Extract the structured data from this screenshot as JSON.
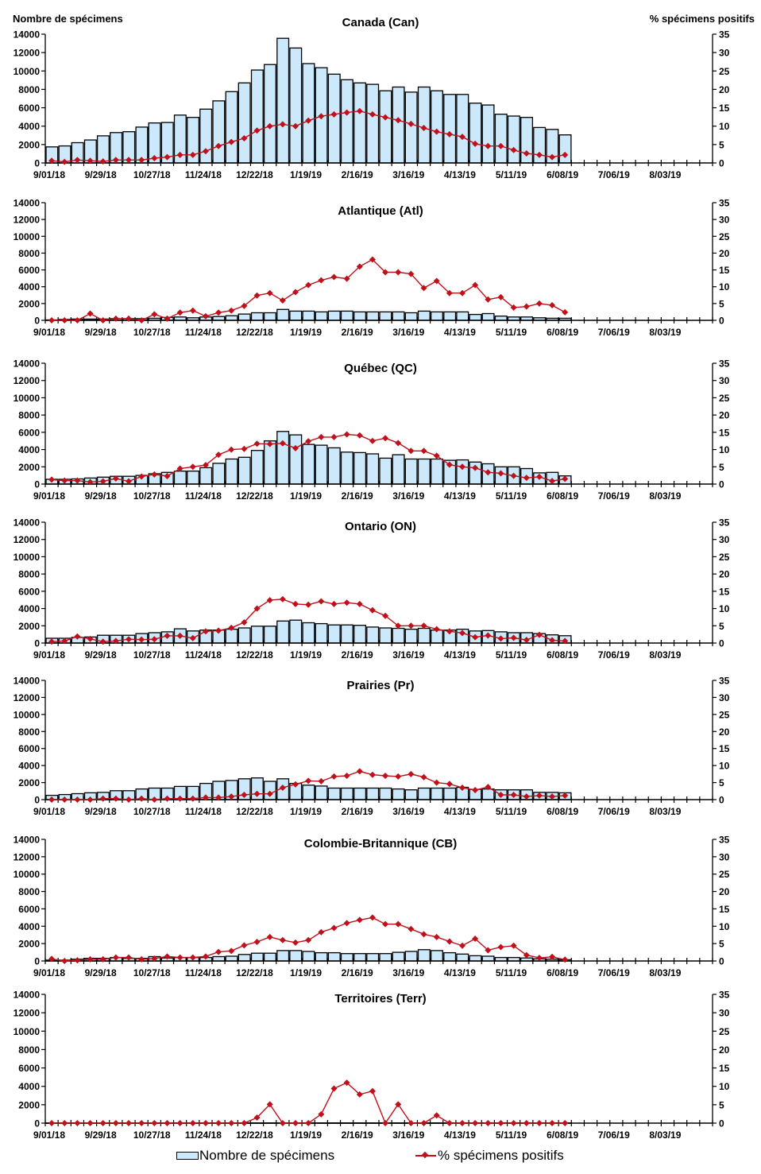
{
  "chart_data": [
    {
      "type": "bar+line",
      "title": "Canada (Can)",
      "ylabel_left": "Nombre de spécimens",
      "ylabel_right": "% spécimens positifs",
      "y_left_ticks": [
        "0",
        "2000",
        "4000",
        "6000",
        "8000",
        "10000",
        "12000",
        "14000"
      ],
      "y_right_ticks": [
        "0",
        "5",
        "10",
        "15",
        "20",
        "25",
        "30",
        "35"
      ],
      "ylim_left": [
        0,
        14000
      ],
      "ylim_right": [
        0,
        35
      ],
      "x_tick_labels": [
        "9/01/18",
        "9/29/18",
        "10/27/18",
        "11/24/18",
        "12/22/18",
        "1/19/19",
        "2/16/19",
        "3/16/19",
        "4/13/19",
        "5/11/19",
        "6/08/19",
        "7/06/19",
        "8/03/19"
      ],
      "weeks_total": 52,
      "series": [
        {
          "name": "Nombre de spécimens",
          "kind": "bar",
          "values": [
            1750,
            1850,
            2200,
            2500,
            2950,
            3300,
            3400,
            3900,
            4350,
            4400,
            5200,
            4950,
            5850,
            6750,
            7750,
            8700,
            10100,
            10700,
            13550,
            12500,
            10800,
            10350,
            9650,
            9050,
            8700,
            8550,
            7850,
            8250,
            7700,
            8250,
            7850,
            7450,
            7450,
            6500,
            6300,
            5300,
            5100,
            4950,
            3850,
            3650,
            3050
          ]
        },
        {
          "name": "% spécimens positifs",
          "kind": "line",
          "values": [
            0.6,
            0.3,
            0.8,
            0.6,
            0.4,
            0.8,
            0.8,
            0.8,
            1.3,
            1.6,
            2.2,
            2.2,
            3.2,
            4.6,
            5.7,
            6.7,
            8.8,
            10.0,
            10.5,
            10.0,
            11.5,
            12.7,
            13.2,
            13.7,
            14.1,
            13.2,
            12.4,
            11.6,
            10.6,
            9.5,
            8.5,
            7.8,
            7.1,
            5.2,
            4.6,
            4.6,
            3.5,
            2.6,
            2.2,
            1.6,
            2.2
          ]
        }
      ]
    },
    {
      "type": "bar+line",
      "title": "Atlantique (Atl)",
      "y_left_ticks": [
        "0",
        "2000",
        "4000",
        "6000",
        "8000",
        "10000",
        "12000",
        "14000"
      ],
      "y_right_ticks": [
        "0",
        "5",
        "10",
        "15",
        "20",
        "25",
        "30",
        "35"
      ],
      "ylim_left": [
        0,
        14000
      ],
      "ylim_right": [
        0,
        35
      ],
      "x_tick_labels": [
        "9/01/18",
        "9/29/18",
        "10/27/18",
        "11/24/18",
        "12/22/18",
        "1/19/19",
        "2/16/19",
        "3/16/19",
        "4/13/19",
        "5/11/19",
        "6/08/19",
        "7/06/19",
        "8/03/19"
      ],
      "weeks_total": 52,
      "series": [
        {
          "name": "Nombre de spécimens",
          "kind": "bar",
          "values": [
            50,
            100,
            150,
            150,
            150,
            200,
            200,
            200,
            250,
            350,
            400,
            300,
            400,
            450,
            550,
            750,
            900,
            900,
            1300,
            1100,
            1100,
            1000,
            1100,
            1100,
            1000,
            1000,
            1000,
            1000,
            900,
            1100,
            1000,
            1000,
            1000,
            700,
            800,
            500,
            400,
            400,
            300,
            250,
            250
          ]
        },
        {
          "name": "% spécimens positifs",
          "kind": "line",
          "values": [
            0,
            0,
            0,
            2.0,
            0,
            0.5,
            0.5,
            0,
            1.8,
            0.5,
            2.3,
            2.9,
            1.2,
            2.3,
            2.9,
            4.3,
            7.4,
            8.1,
            5.9,
            8.4,
            10.5,
            11.9,
            12.9,
            12.4,
            16.0,
            18.1,
            14.3,
            14.3,
            13.8,
            9.6,
            11.7,
            8.1,
            8.1,
            10.5,
            6.2,
            6.9,
            3.8,
            4.1,
            5.0,
            4.5,
            2.4
          ]
        }
      ]
    },
    {
      "type": "bar+line",
      "title": "Québec (QC)",
      "y_left_ticks": [
        "0",
        "2000",
        "4000",
        "6000",
        "8000",
        "10000",
        "12000",
        "14000"
      ],
      "y_right_ticks": [
        "0",
        "5",
        "10",
        "15",
        "20",
        "25",
        "30",
        "35"
      ],
      "ylim_left": [
        0,
        14000
      ],
      "ylim_right": [
        0,
        35
      ],
      "x_tick_labels": [
        "9/01/18",
        "9/29/18",
        "10/27/18",
        "11/24/18",
        "12/22/18",
        "1/19/19",
        "2/16/19",
        "3/16/19",
        "4/13/19",
        "5/11/19",
        "6/08/19",
        "7/06/19",
        "8/03/19"
      ],
      "weeks_total": 52,
      "series": [
        {
          "name": "Nombre de spécimens",
          "kind": "bar",
          "values": [
            550,
            550,
            600,
            700,
            800,
            900,
            900,
            1000,
            1200,
            1350,
            1500,
            1500,
            1900,
            2400,
            2900,
            3100,
            3900,
            5000,
            6100,
            5700,
            4600,
            4500,
            4200,
            3700,
            3650,
            3500,
            3000,
            3400,
            2900,
            2900,
            2900,
            2750,
            2800,
            2550,
            2350,
            2000,
            2000,
            1800,
            1300,
            1350,
            950
          ]
        },
        {
          "name": "% spécimens positifs",
          "kind": "line",
          "values": [
            1.3,
            1.0,
            1.0,
            0.6,
            0.8,
            1.6,
            0.8,
            2.2,
            2.8,
            2.3,
            4.5,
            5.0,
            5.5,
            8.5,
            10.0,
            10.2,
            11.7,
            11.6,
            11.8,
            10.4,
            12.4,
            13.6,
            13.6,
            14.4,
            14.1,
            12.5,
            13.3,
            11.9,
            9.6,
            9.6,
            8.2,
            5.6,
            5.0,
            4.7,
            3.4,
            3.1,
            2.4,
            1.8,
            2.1,
            0.9,
            1.5
          ]
        }
      ]
    },
    {
      "type": "bar+line",
      "title": "Ontario (ON)",
      "y_left_ticks": [
        "0",
        "2000",
        "4000",
        "6000",
        "8000",
        "10000",
        "12000",
        "14000"
      ],
      "y_right_ticks": [
        "0",
        "5",
        "10",
        "15",
        "20",
        "25",
        "30",
        "35"
      ],
      "ylim_left": [
        0,
        14000
      ],
      "ylim_right": [
        0,
        35
      ],
      "x_tick_labels": [
        "9/01/18",
        "9/29/18",
        "10/27/18",
        "11/24/18",
        "12/22/18",
        "1/19/19",
        "2/16/19",
        "3/16/19",
        "4/13/19",
        "5/11/19",
        "6/08/19",
        "7/06/19",
        "8/03/19"
      ],
      "weeks_total": 52,
      "series": [
        {
          "name": "Nombre de spécimens",
          "kind": "bar",
          "values": [
            550,
            550,
            650,
            700,
            900,
            900,
            900,
            1100,
            1200,
            1300,
            1650,
            1400,
            1500,
            1500,
            1600,
            1750,
            1950,
            1950,
            2550,
            2650,
            2350,
            2250,
            2100,
            2100,
            2050,
            1850,
            1750,
            1700,
            1600,
            1700,
            1500,
            1500,
            1600,
            1400,
            1450,
            1300,
            1200,
            1200,
            1100,
            950,
            850
          ]
        },
        {
          "name": "% spécimens positifs",
          "kind": "line",
          "values": [
            0.4,
            0.6,
            1.9,
            1.2,
            0.4,
            0.6,
            1.1,
            1.0,
            1.1,
            2.1,
            2.1,
            1.4,
            3.4,
            3.6,
            4.4,
            6.0,
            10.0,
            12.4,
            12.7,
            11.3,
            11.1,
            12.1,
            11.3,
            11.7,
            11.3,
            9.5,
            7.9,
            5.0,
            5.0,
            5.0,
            4.0,
            3.4,
            2.9,
            1.7,
            2.2,
            1.3,
            1.5,
            0.9,
            2.4,
            0.8,
            0.6
          ]
        }
      ]
    },
    {
      "type": "bar+line",
      "title": "Prairies (Pr)",
      "y_left_ticks": [
        "0",
        "2000",
        "4000",
        "6000",
        "8000",
        "10000",
        "12000",
        "14000"
      ],
      "y_right_ticks": [
        "0",
        "5",
        "10",
        "15",
        "20",
        "25",
        "30",
        "35"
      ],
      "ylim_left": [
        0,
        14000
      ],
      "ylim_right": [
        0,
        35
      ],
      "x_tick_labels": [
        "9/01/18",
        "9/29/18",
        "10/27/18",
        "11/24/18",
        "12/22/18",
        "1/19/19",
        "2/16/19",
        "3/16/19",
        "4/13/19",
        "5/11/19",
        "6/08/19",
        "7/06/19",
        "8/03/19"
      ],
      "weeks_total": 52,
      "series": [
        {
          "name": "Nombre de spécimens",
          "kind": "bar",
          "values": [
            500,
            600,
            700,
            800,
            850,
            1050,
            1050,
            1250,
            1350,
            1350,
            1550,
            1550,
            1900,
            2150,
            2250,
            2450,
            2550,
            2150,
            2450,
            1900,
            1700,
            1600,
            1350,
            1350,
            1350,
            1350,
            1350,
            1250,
            1150,
            1350,
            1350,
            1350,
            1450,
            1200,
            1250,
            1150,
            1150,
            1150,
            850,
            850,
            800
          ]
        },
        {
          "name": "% spécimens positifs",
          "kind": "line",
          "values": [
            0,
            0,
            0,
            0,
            0.3,
            0.3,
            0,
            0.3,
            0,
            0.3,
            0.3,
            0.3,
            0.6,
            0.6,
            0.9,
            1.4,
            1.7,
            1.7,
            3.5,
            4.5,
            5.5,
            5.4,
            6.8,
            7.0,
            8.3,
            7.3,
            7.0,
            6.8,
            7.5,
            6.6,
            5.0,
            4.6,
            3.5,
            2.8,
            3.7,
            1.4,
            1.4,
            0.9,
            1.2,
            0.9,
            1.2
          ]
        }
      ]
    },
    {
      "type": "bar+line",
      "title": "Colombie-Britannique (CB)",
      "y_left_ticks": [
        "0",
        "2000",
        "4000",
        "6000",
        "8000",
        "10000",
        "12000",
        "14000"
      ],
      "y_right_ticks": [
        "0",
        "5",
        "10",
        "15",
        "20",
        "25",
        "30",
        "35"
      ],
      "ylim_left": [
        0,
        14000
      ],
      "ylim_right": [
        0,
        35
      ],
      "x_tick_labels": [
        "9/01/18",
        "9/29/18",
        "10/27/18",
        "11/24/18",
        "12/22/18",
        "1/19/19",
        "2/16/19",
        "3/16/19",
        "4/13/19",
        "5/11/19",
        "6/08/19",
        "7/06/19",
        "8/03/19"
      ],
      "weeks_total": 52,
      "series": [
        {
          "name": "Nombre de spécimens",
          "kind": "bar",
          "values": [
            100,
            100,
            200,
            300,
            300,
            400,
            300,
            300,
            500,
            350,
            400,
            400,
            400,
            500,
            550,
            750,
            900,
            900,
            1200,
            1200,
            1100,
            950,
            950,
            850,
            850,
            850,
            850,
            1000,
            1100,
            1300,
            1200,
            950,
            800,
            600,
            550,
            400,
            400,
            350,
            250,
            200,
            150
          ]
        },
        {
          "name": "% spécimens positifs",
          "kind": "line",
          "values": [
            0.6,
            0,
            0.2,
            0.5,
            0.5,
            1.0,
            1.0,
            0.5,
            0.7,
            1.3,
            1.0,
            1.0,
            1.3,
            2.6,
            2.9,
            4.5,
            5.5,
            6.9,
            6.0,
            5.3,
            6.0,
            8.3,
            9.5,
            10.9,
            11.8,
            12.5,
            10.6,
            10.6,
            9.2,
            7.7,
            6.9,
            5.6,
            4.4,
            6.4,
            3.1,
            4.0,
            4.4,
            1.7,
            0.9,
            1.2,
            0.4
          ]
        }
      ]
    },
    {
      "type": "bar+line",
      "title": "Territoires (Terr)",
      "y_left_ticks": [
        "0",
        "2000",
        "4000",
        "6000",
        "8000",
        "10000",
        "12000",
        "14000"
      ],
      "y_right_ticks": [
        "0",
        "5",
        "10",
        "15",
        "20",
        "25",
        "30",
        "35"
      ],
      "ylim_left": [
        0,
        14000
      ],
      "ylim_right": [
        0,
        35
      ],
      "x_tick_labels": [
        "9/01/18",
        "9/29/18",
        "10/27/18",
        "11/24/18",
        "12/22/18",
        "1/19/19",
        "2/16/19",
        "3/16/19",
        "4/13/19",
        "5/11/19",
        "6/08/19",
        "7/06/19",
        "8/03/19"
      ],
      "weeks_total": 52,
      "series": [
        {
          "name": "Nombre de spécimens",
          "kind": "bar",
          "values": [
            20,
            20,
            20,
            20,
            20,
            20,
            20,
            20,
            20,
            20,
            20,
            20,
            20,
            20,
            20,
            20,
            30,
            30,
            30,
            30,
            30,
            30,
            30,
            30,
            30,
            30,
            30,
            30,
            30,
            30,
            30,
            30,
            30,
            30,
            30,
            30,
            30,
            30,
            30,
            30,
            30
          ]
        },
        {
          "name": "% spécimens positifs",
          "kind": "line",
          "values": [
            0,
            0,
            0,
            0,
            0,
            0,
            0,
            0,
            0,
            0,
            0,
            0,
            0,
            0,
            0,
            0,
            1.5,
            5.1,
            0,
            0,
            0,
            2.4,
            9.4,
            11.0,
            7.8,
            8.7,
            0,
            5.1,
            0,
            0,
            2.1,
            0,
            0,
            0,
            0,
            0,
            0,
            0,
            0,
            0,
            0
          ]
        }
      ]
    }
  ],
  "legend": {
    "bar_label": "Nombre de spécimens",
    "line_label": "% spécimens positifs"
  },
  "colors": {
    "bar_fill": "#cce8fb",
    "bar_stroke": "#000000",
    "line": "#c0101a"
  }
}
